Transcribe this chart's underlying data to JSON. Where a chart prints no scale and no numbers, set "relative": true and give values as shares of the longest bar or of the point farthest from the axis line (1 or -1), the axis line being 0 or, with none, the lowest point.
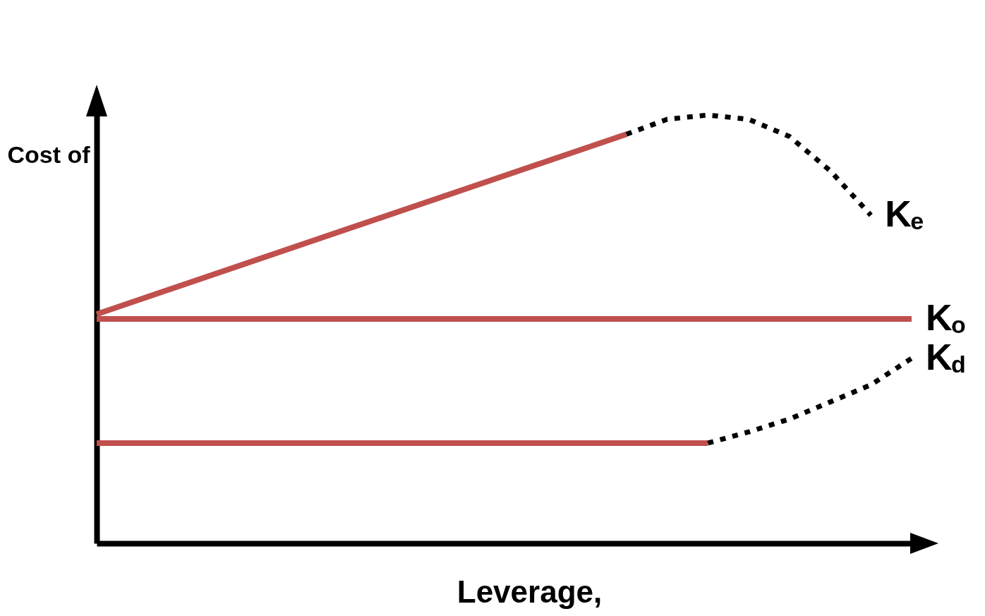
{
  "chart_data": {
    "type": "line",
    "relative": true,
    "xlabel": "Leverage,",
    "ylabel": "Cost of",
    "legend": false,
    "grid": false,
    "marker": "none",
    "categories": [
      null,
      null,
      null,
      null,
      null,
      null,
      null,
      null,
      null,
      null,
      null,
      null,
      null,
      null,
      null,
      null,
      null,
      null,
      null,
      null,
      null
    ],
    "series": [
      {
        "color": "#c0504d",
        "line_style": "solid",
        "values": [
          0.535,
          null,
          null,
          null,
          null,
          null,
          null,
          null,
          null,
          null,
          null,
          null,
          null,
          0.955,
          null,
          null,
          null,
          null,
          null,
          null,
          null
        ]
      },
      {
        "name": "K$_{e}$",
        "color": "#000000",
        "line_style": "dotted",
        "values": [
          null,
          null,
          null,
          null,
          null,
          null,
          null,
          null,
          null,
          null,
          null,
          null,
          null,
          0.955,
          0.99,
          1.0,
          0.99,
          0.95,
          0.87,
          0.766,
          null
        ]
      },
      {
        "name": "K$_{o}$",
        "color": "#c0504d",
        "line_style": "solid",
        "values": [
          0.524,
          null,
          null,
          null,
          null,
          null,
          null,
          null,
          null,
          null,
          null,
          null,
          null,
          null,
          null,
          null,
          null,
          null,
          null,
          null,
          0.524
        ]
      },
      {
        "color": "#c0504d",
        "line_style": "solid",
        "values": [
          0.234,
          null,
          null,
          null,
          null,
          null,
          null,
          null,
          null,
          null,
          null,
          null,
          null,
          null,
          null,
          0.234,
          null,
          null,
          null,
          null,
          null
        ]
      },
      {
        "name": "K$_{d}$",
        "color": "#000000",
        "line_style": "dotted",
        "values": [
          null,
          null,
          null,
          null,
          null,
          null,
          null,
          null,
          null,
          null,
          null,
          null,
          null,
          null,
          null,
          0.234,
          0.26,
          0.29,
          0.33,
          0.37,
          0.432
        ]
      }
    ]
  }
}
